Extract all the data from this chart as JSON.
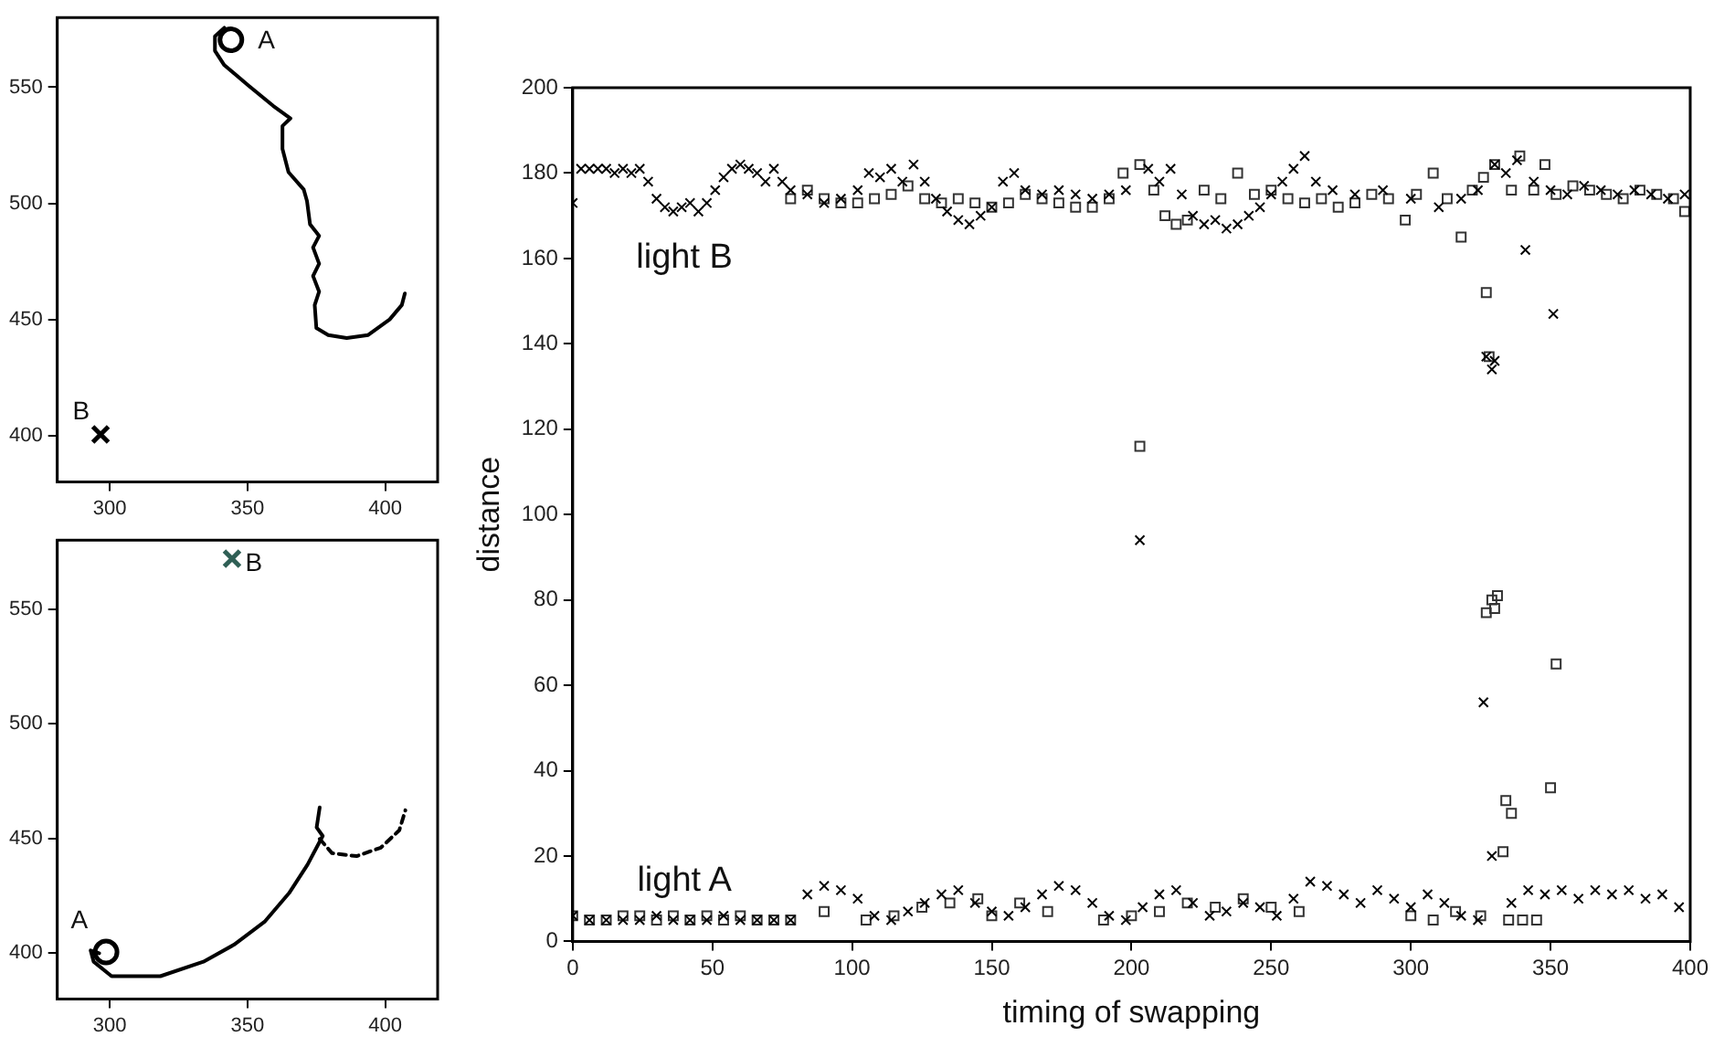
{
  "chart_data": [
    {
      "type": "line",
      "xlim": [
        281,
        419
      ],
      "ylim": [
        380,
        580
      ],
      "xticks": [
        300,
        350,
        400
      ],
      "yticks": [
        400,
        450,
        500,
        550
      ],
      "grid": false,
      "series": [
        {
          "color": "#000000",
          "marker": "none",
          "line_style": "solid",
          "x": [
            341.6,
            338.2,
            338.2,
            341.6,
            350.4,
            359.3,
            365.6,
            362.7,
            362.7,
            364.9,
            370.4,
            371.6,
            372.7,
            376,
            373.8,
            376,
            373.8,
            376,
            374.4,
            375,
            379.3,
            386,
            393.8,
            401.6,
            406,
            407.1
          ],
          "values": [
            575.6,
            571.9,
            565.7,
            559.5,
            550.7,
            542,
            536.6,
            533.3,
            523.4,
            513.4,
            506,
            501,
            491,
            486,
            481,
            474,
            468.7,
            462,
            456.2,
            446.3,
            443.3,
            442,
            443.3,
            450,
            456.2,
            461.2
          ]
        },
        {
          "type": "scatter",
          "color": "#000000",
          "marker": "circle",
          "x": [
            344
          ],
          "values": [
            570.4
          ]
        },
        {
          "type": "scatter",
          "color": "#000000",
          "marker": "cross",
          "x": [
            296.7
          ],
          "values": [
            400.5
          ]
        }
      ],
      "annotations": [
        "A",
        "B"
      ]
    },
    {
      "type": "line",
      "xlim": [
        281,
        419
      ],
      "ylim": [
        380,
        580
      ],
      "xticks": [
        300,
        350,
        400
      ],
      "yticks": [
        400,
        450,
        500,
        550
      ],
      "grid": false,
      "series": [
        {
          "color": "#000000",
          "marker": "none",
          "line_style": "solid",
          "x": [
            296.2,
            293.1,
            294.2,
            300.7,
            318.4,
            334,
            345.1,
            356.2,
            365.1,
            371.8,
            377.3,
            375.1,
            376.2
          ],
          "values": [
            400,
            401.2,
            396.3,
            390,
            390,
            396.3,
            403.7,
            413.7,
            426.2,
            438.6,
            451.1,
            454.8,
            463.5
          ]
        },
        {
          "color": "#000000",
          "marker": "none",
          "line_style": "dashed",
          "x": [
            376.2,
            380.7,
            389.6,
            398.4,
            405.1,
            407.3
          ],
          "values": [
            449.8,
            443.6,
            442.3,
            446,
            453.6,
            462.3
          ]
        },
        {
          "type": "scatter",
          "color": "#000000",
          "marker": "circle",
          "x": [
            298.7
          ],
          "values": [
            400.5
          ]
        },
        {
          "type": "scatter",
          "color": "#2f5f55",
          "marker": "cross",
          "x": [
            344.4
          ],
          "values": [
            571.9
          ]
        }
      ],
      "annotations": [
        "A",
        "B"
      ]
    },
    {
      "type": "scatter",
      "xlabel": "timing of swapping",
      "ylabel": "distance",
      "xlim": [
        0,
        400
      ],
      "ylim": [
        0,
        200
      ],
      "xticks": [
        0,
        50,
        100,
        150,
        200,
        250,
        300,
        350,
        400
      ],
      "yticks": [
        0,
        20,
        40,
        60,
        80,
        100,
        120,
        140,
        160,
        180,
        200
      ],
      "grid": false,
      "series": [
        {
          "color": "#000000",
          "marker": "cross",
          "x": [
            0,
            3,
            6,
            9,
            12,
            15,
            18,
            21,
            24,
            27,
            30,
            33,
            36,
            39,
            42,
            45,
            48,
            51,
            54,
            57,
            60,
            63,
            66,
            69,
            72,
            75,
            78,
            84,
            90,
            96,
            102,
            106,
            110,
            114,
            118,
            122,
            126,
            130,
            134,
            138,
            142,
            146,
            150,
            154,
            158,
            162,
            168,
            174,
            180,
            186,
            192,
            198,
            206,
            210,
            214,
            218,
            222,
            226,
            230,
            234,
            238,
            242,
            246,
            250,
            254,
            258,
            262,
            266,
            272,
            280,
            290,
            300,
            310,
            318,
            324,
            330,
            334,
            338,
            344,
            350,
            356,
            362,
            368,
            374,
            380,
            386,
            392,
            398,
            203,
            326,
            327,
            329,
            330,
            341,
            351,
            329,
            0,
            6,
            12,
            18,
            24,
            30,
            36,
            42,
            48,
            54,
            60,
            66,
            72,
            78,
            84,
            90,
            96,
            102,
            108,
            114,
            120,
            126,
            132,
            138,
            144,
            150,
            156,
            162,
            168,
            174,
            180,
            186,
            192,
            198,
            204,
            210,
            216,
            222,
            228,
            234,
            240,
            246,
            252,
            258,
            264,
            270,
            276,
            282,
            288,
            294,
            300,
            306,
            312,
            318,
            324,
            336,
            342,
            348,
            354,
            360,
            366,
            372,
            378,
            384,
            390,
            396
          ],
          "values": [
            173,
            181,
            181,
            181,
            181,
            180,
            181,
            180,
            181,
            178,
            174,
            172,
            171,
            172,
            173,
            171,
            173,
            176,
            179,
            181,
            182,
            181,
            180,
            178,
            181,
            178,
            176,
            175,
            173,
            174,
            176,
            180,
            179,
            181,
            178,
            182,
            178,
            174,
            171,
            169,
            168,
            170,
            172,
            178,
            180,
            176,
            175,
            176,
            175,
            174,
            175,
            176,
            181,
            178,
            181,
            175,
            170,
            168,
            169,
            167,
            168,
            170,
            172,
            175,
            178,
            181,
            184,
            178,
            176,
            175,
            176,
            174,
            172,
            174,
            176,
            182,
            180,
            183,
            178,
            176,
            175,
            177,
            176,
            175,
            176,
            175,
            174,
            175,
            94,
            56,
            137,
            134,
            136,
            162,
            147,
            20,
            6,
            5,
            5,
            5,
            5,
            6,
            5,
            5,
            5,
            6,
            5,
            5,
            5,
            5,
            11,
            13,
            12,
            10,
            6,
            5,
            7,
            9,
            11,
            12,
            9,
            7,
            6,
            8,
            11,
            13,
            12,
            9,
            6,
            5,
            8,
            11,
            12,
            9,
            6,
            7,
            9,
            8,
            6,
            10,
            14,
            13,
            11,
            9,
            12,
            10,
            8,
            11,
            9,
            6,
            5,
            9,
            12,
            11,
            12,
            10,
            12,
            11,
            12,
            10,
            11,
            8
          ]
        },
        {
          "color": "#333333",
          "marker": "square",
          "x": [
            78,
            84,
            90,
            96,
            102,
            108,
            114,
            120,
            126,
            132,
            138,
            144,
            150,
            156,
            162,
            168,
            174,
            180,
            186,
            192,
            197,
            203,
            208,
            212,
            216,
            220,
            226,
            232,
            238,
            244,
            250,
            256,
            262,
            268,
            274,
            280,
            286,
            292,
            298,
            302,
            308,
            313,
            318,
            322,
            326,
            330,
            336,
            339,
            344,
            348,
            352,
            358,
            364,
            370,
            376,
            382,
            388,
            394,
            398,
            203,
            327,
            328,
            329,
            330,
            331,
            327,
            352,
            350,
            334,
            336,
            333,
            0,
            6,
            12,
            18,
            24,
            30,
            36,
            42,
            48,
            54,
            60,
            66,
            72,
            78,
            90,
            105,
            115,
            125,
            135,
            145,
            150,
            160,
            170,
            190,
            200,
            210,
            220,
            230,
            240,
            250,
            260,
            300,
            308,
            316,
            325,
            335,
            340,
            345
          ],
          "values": [
            174,
            176,
            174,
            173,
            173,
            174,
            175,
            177,
            174,
            173,
            174,
            173,
            172,
            173,
            175,
            174,
            173,
            172,
            172,
            174,
            180,
            182,
            176,
            170,
            168,
            169,
            176,
            174,
            180,
            175,
            176,
            174,
            173,
            174,
            172,
            173,
            175,
            174,
            169,
            175,
            180,
            174,
            165,
            176,
            179,
            182,
            176,
            184,
            176,
            182,
            175,
            177,
            176,
            175,
            174,
            176,
            175,
            174,
            171,
            116,
            152,
            137,
            80,
            78,
            81,
            77,
            65,
            36,
            33,
            30,
            21,
            6,
            5,
            5,
            6,
            6,
            5,
            6,
            5,
            6,
            5,
            6,
            5,
            5,
            5,
            7,
            5,
            6,
            8,
            9,
            10,
            6,
            9,
            7,
            5,
            6,
            7,
            9,
            8,
            10,
            8,
            7,
            6,
            5,
            7,
            6,
            5,
            5,
            5
          ]
        }
      ],
      "annotations": [
        "light B",
        "light A"
      ]
    }
  ]
}
